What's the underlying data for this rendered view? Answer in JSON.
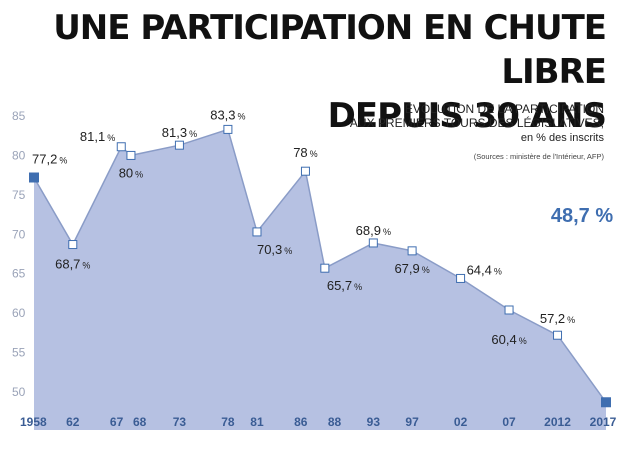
{
  "title": {
    "line1": "UNE PARTICIPATION EN CHUTE LIBRE",
    "line2": "DEPUIS  30 ANS"
  },
  "subtitle": {
    "line1": "ÉVOLUTION DE LA PARTICIPATION",
    "line2": "AUX PREMIERS TOURS DES LÉGISLATIVES,",
    "line3": "en % des inscrits",
    "source": "(Sources : ministère de l'Intérieur, AFP)"
  },
  "colors": {
    "area": "#b6c1e2",
    "line": "#8a9cc7",
    "marker_border": "#3f6eb0",
    "endpoint": "#3f6eb0",
    "axis_labels": "#9aa3b8",
    "year_labels": "#3a5c94"
  },
  "chart_data": {
    "type": "area",
    "title": "ÉVOLUTION DE LA PARTICIPATION AUX PREMIERS TOURS DES LÉGISLATIVES, en % des inscrits",
    "ylabel": "",
    "xlabel": "",
    "ylim": [
      45,
      85
    ],
    "yticks": [
      50,
      55,
      60,
      65,
      70,
      75,
      80,
      85
    ],
    "grid": false,
    "x": [
      1958,
      1962,
      1967,
      1968,
      1973,
      1978,
      1981,
      1986,
      1988,
      1993,
      1997,
      2002,
      2007,
      2012,
      2017
    ],
    "xtick_labels": [
      "1958",
      "62",
      "67",
      "68",
      "73",
      "78",
      "81",
      "86",
      "88",
      "93",
      "97",
      "02",
      "07",
      "2012",
      "2017"
    ],
    "values": [
      77.2,
      68.7,
      81.1,
      80,
      81.3,
      83.3,
      70.3,
      78,
      65.7,
      68.9,
      67.9,
      64.4,
      60.4,
      57.2,
      48.7
    ],
    "labels": [
      "77,2",
      "68,7",
      "81,1",
      "80",
      "81,3",
      "83,3",
      "70,3",
      "78",
      "65,7",
      "68,9",
      "67,9",
      "64,4",
      "60,4",
      "57,2",
      "48,7 %"
    ],
    "pct_sign": "%"
  }
}
